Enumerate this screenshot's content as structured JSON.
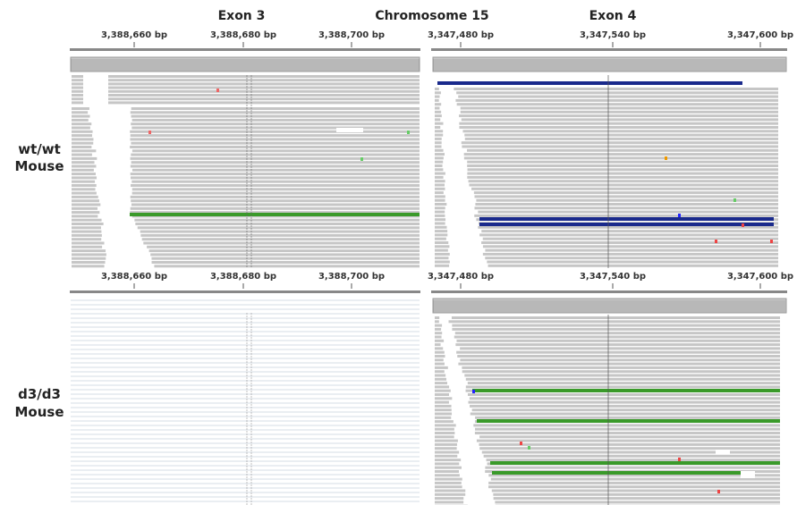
{
  "header": {
    "exon_left": "Exon 3",
    "chromosome": "Chromosome 15",
    "exon_right": "Exon 4"
  },
  "top_ruler": {
    "left": [
      "3,388,660 bp",
      "3,388,680 bp",
      "3,388,700 bp"
    ],
    "right": [
      "3,347,480 bp",
      "3,347,540 bp",
      "3,347,600 bp"
    ]
  },
  "middle_ruler": {
    "left": [
      "3,388,660 bp",
      "3,388,680 bp",
      "3,388,700 bp"
    ],
    "right": [
      "3,347,480 bp",
      "3,347,540 bp",
      "3,347,600 bp"
    ]
  },
  "samples": [
    {
      "genotype": "wt/wt",
      "species": "Mouse"
    },
    {
      "genotype": "d3/d3",
      "species": "Mouse"
    }
  ]
}
